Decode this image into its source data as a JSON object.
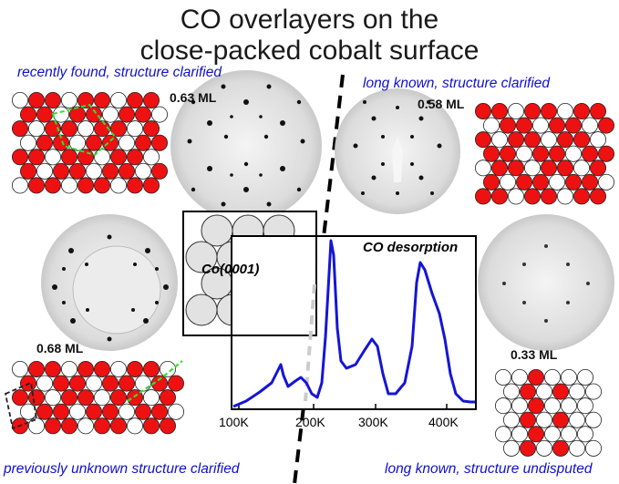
{
  "title": {
    "line1": "CO overlayers on the",
    "line2": "close-packed cobalt surface"
  },
  "panels": {
    "top_left": {
      "caption": "recently found, structure clarified",
      "coverage": "0.63 ML"
    },
    "top_right": {
      "caption": "long known, structure clarified",
      "coverage": "0.58 ML"
    },
    "bottom_left": {
      "caption": "previously unknown structure clarified",
      "coverage": "0.68 ML"
    },
    "bottom_right": {
      "caption": "long known, structure undisputed",
      "coverage": "0.33 ML"
    }
  },
  "surface_label": "Co(0001)",
  "desorption": {
    "title": "CO desorption",
    "x_ticks": [
      "100K",
      "200K",
      "300K",
      "400K"
    ],
    "x_range": [
      100,
      440
    ],
    "trace_color": "#1515d6"
  },
  "colors": {
    "caption": "#1010cc",
    "adsorbate": "#ee1111",
    "substrate": "#ffffff",
    "domain_line": "#33dd33"
  }
}
